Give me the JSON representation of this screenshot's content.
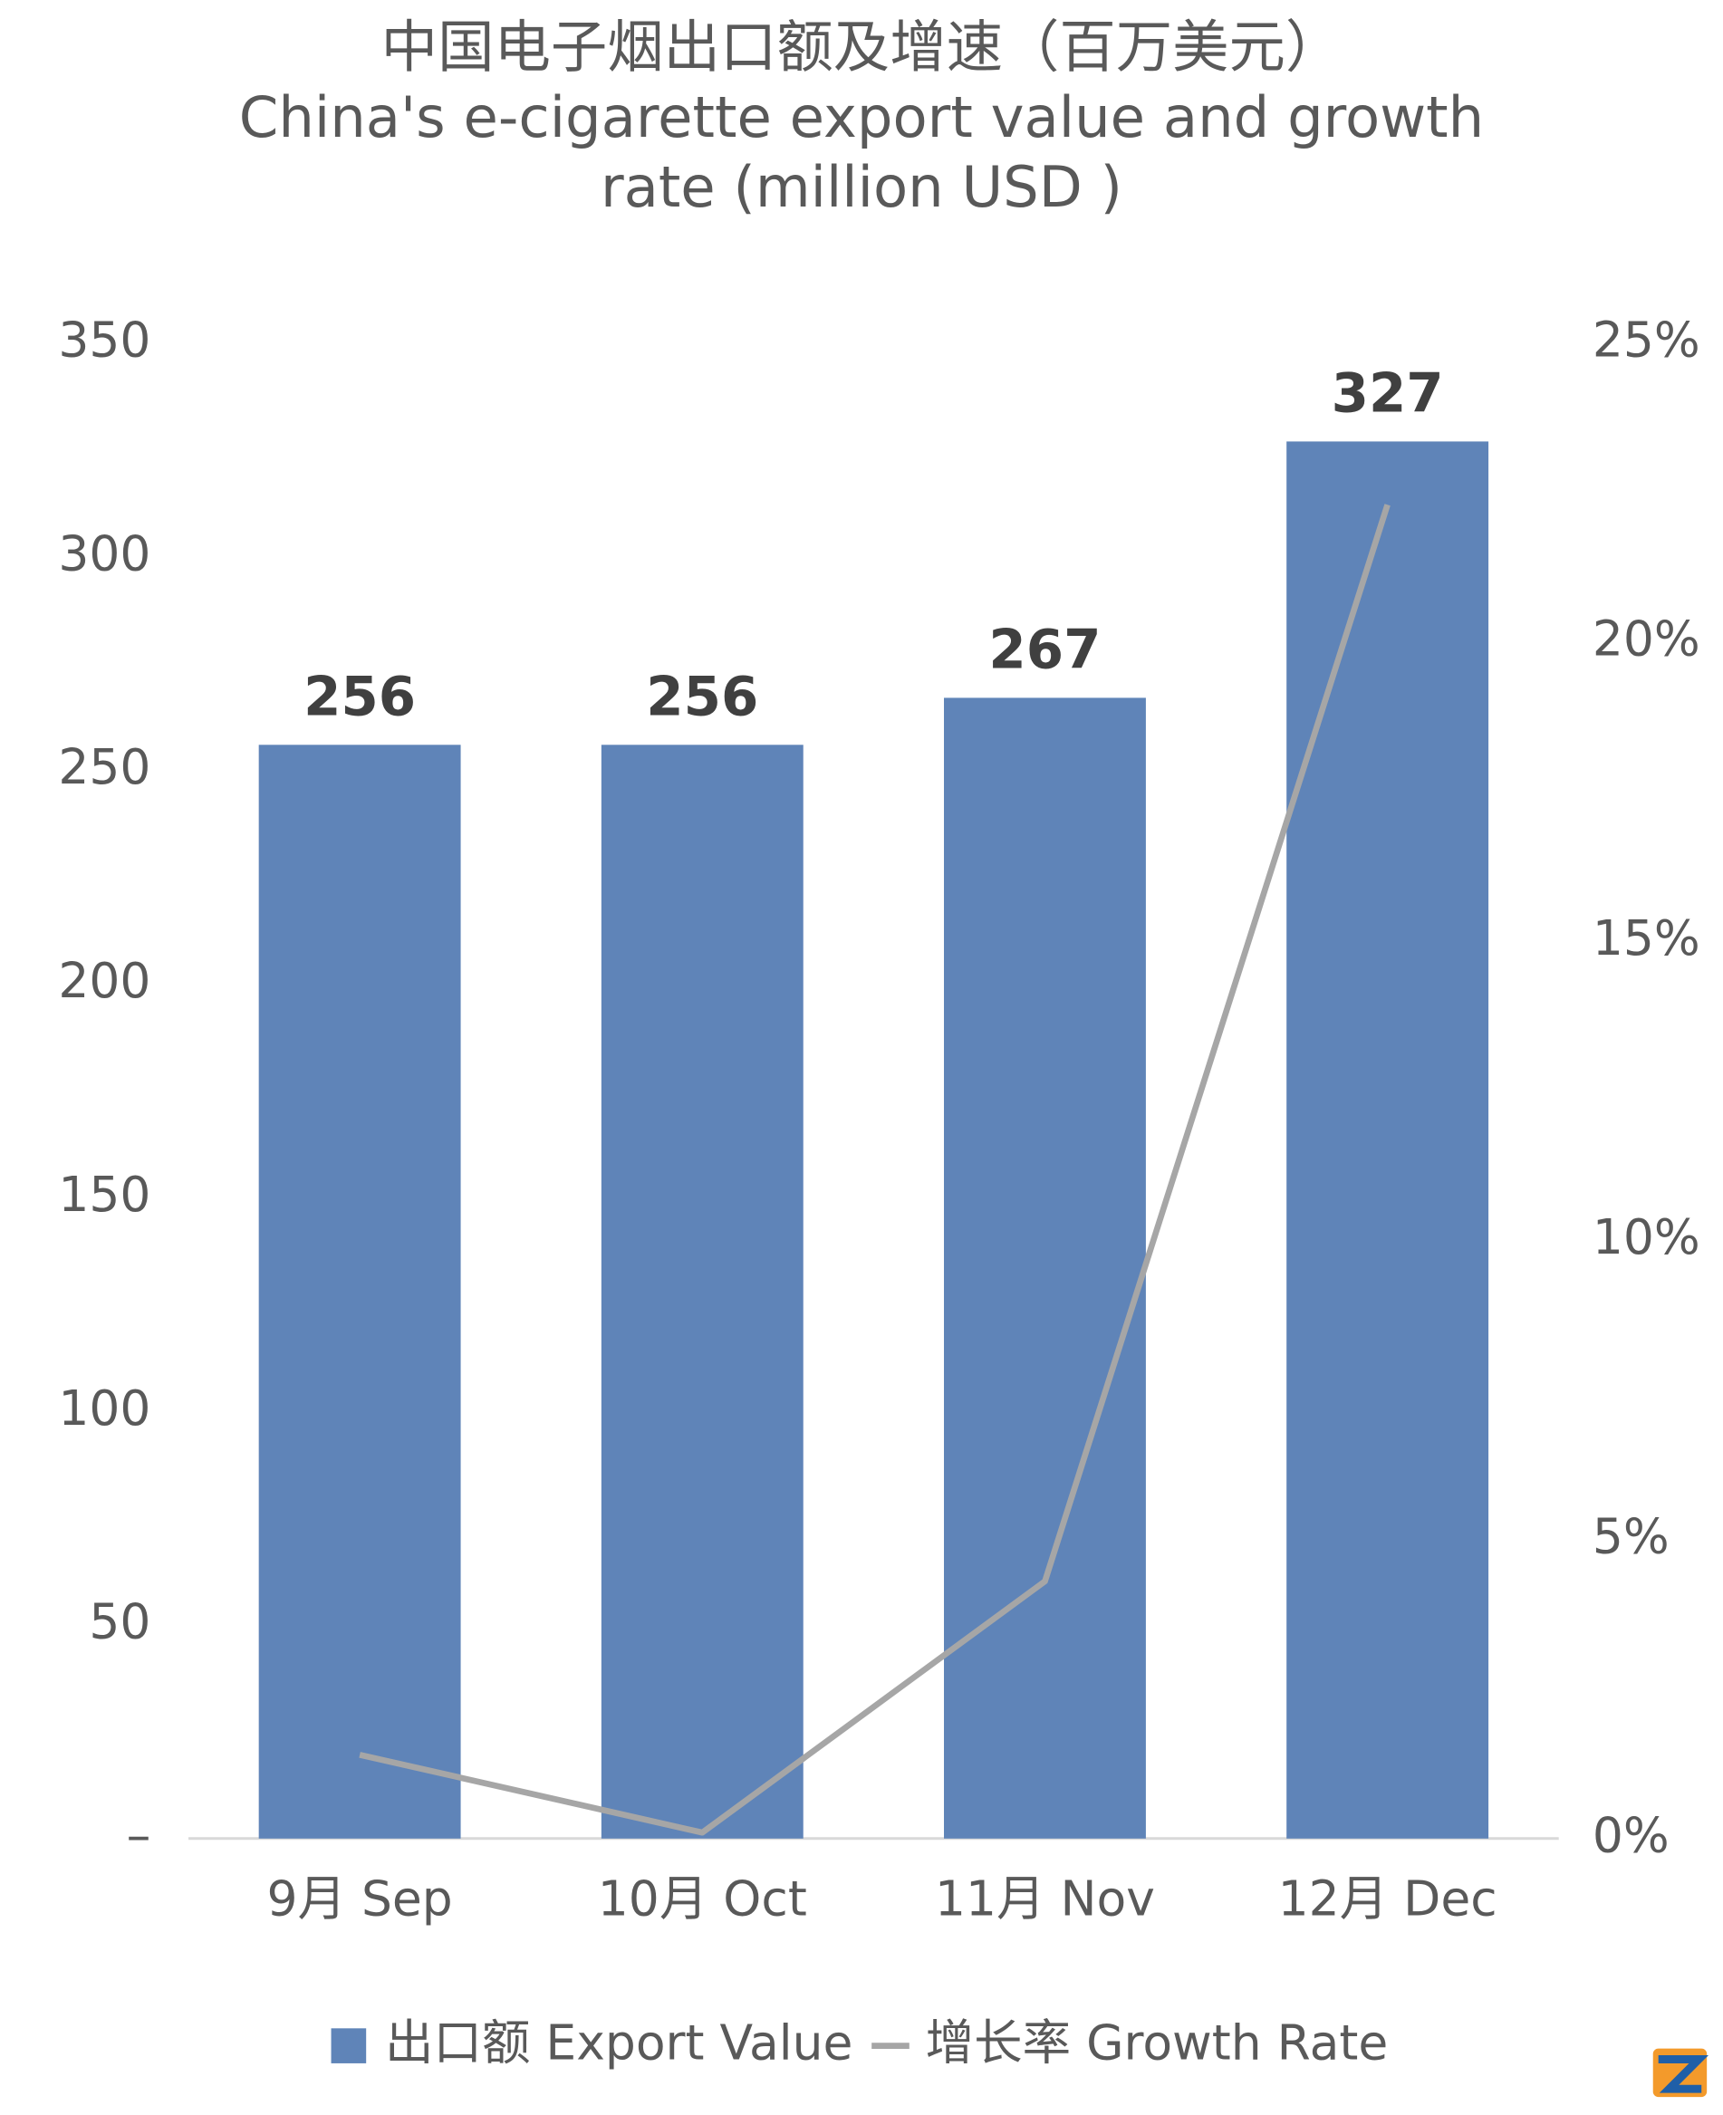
{
  "chart_data": {
    "type": "bar_line",
    "title": "中国电子烟出口额及增速（百万美元）",
    "subtitle": [
      "China's e-cigarette export value and growth",
      "rate (million USD )"
    ],
    "categories": [
      "9月 Sep",
      "10月 Oct",
      "11月 Nov",
      "12月 Dec"
    ],
    "series": [
      {
        "name": "出口额 Export Value",
        "type": "bar",
        "color": "#5f84b8",
        "values": [
          256,
          256,
          267,
          327
        ]
      },
      {
        "name": "增长率 Growth Rate",
        "type": "line",
        "axis": "y2",
        "color": "#a6a6a6",
        "values": [
          1.4,
          0.1,
          4.3,
          22.3
        ]
      }
    ],
    "ylim": [
      0,
      350
    ],
    "yticks": [
      {
        "value": 0,
        "label": "–"
      },
      50,
      100,
      150,
      200,
      250,
      300,
      350
    ],
    "y2lim": [
      0,
      25
    ],
    "y2ticks": [
      {
        "value": 0,
        "label": "0%"
      },
      {
        "value": 5,
        "label": "5%"
      },
      {
        "value": 10,
        "label": "10%"
      },
      {
        "value": 15,
        "label": "15%"
      },
      {
        "value": 20,
        "label": "20%"
      },
      {
        "value": 25,
        "label": "25%"
      }
    ],
    "legend": "bottom"
  }
}
